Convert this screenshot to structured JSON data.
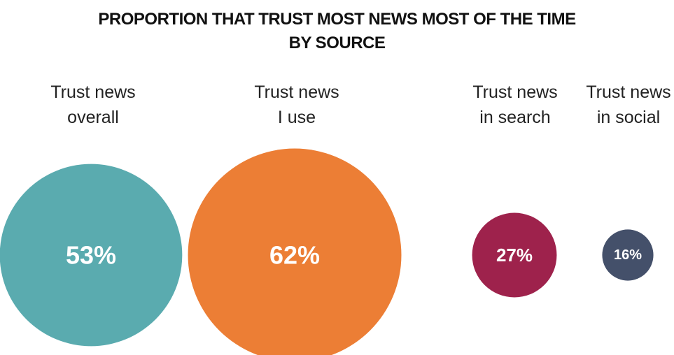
{
  "chart_data": {
    "type": "bubble",
    "title_lines": [
      "PROPORTION THAT TRUST MOST NEWS MOST OF THE TIME",
      "BY SOURCE"
    ],
    "categories": [
      {
        "label_lines": [
          "Trust news",
          "overall"
        ],
        "value": 53,
        "value_label": "53%",
        "color": "#5aabaf"
      },
      {
        "label_lines": [
          "Trust news",
          "I use"
        ],
        "value": 62,
        "value_label": "62%",
        "color": "#ec7e35"
      },
      {
        "label_lines": [
          "Trust news",
          "in search"
        ],
        "value": 27,
        "value_label": "27%",
        "color": "#9e224c"
      },
      {
        "label_lines": [
          "Trust news",
          "in social"
        ],
        "value": 16,
        "value_label": "16%",
        "color": "#44506a"
      }
    ]
  }
}
